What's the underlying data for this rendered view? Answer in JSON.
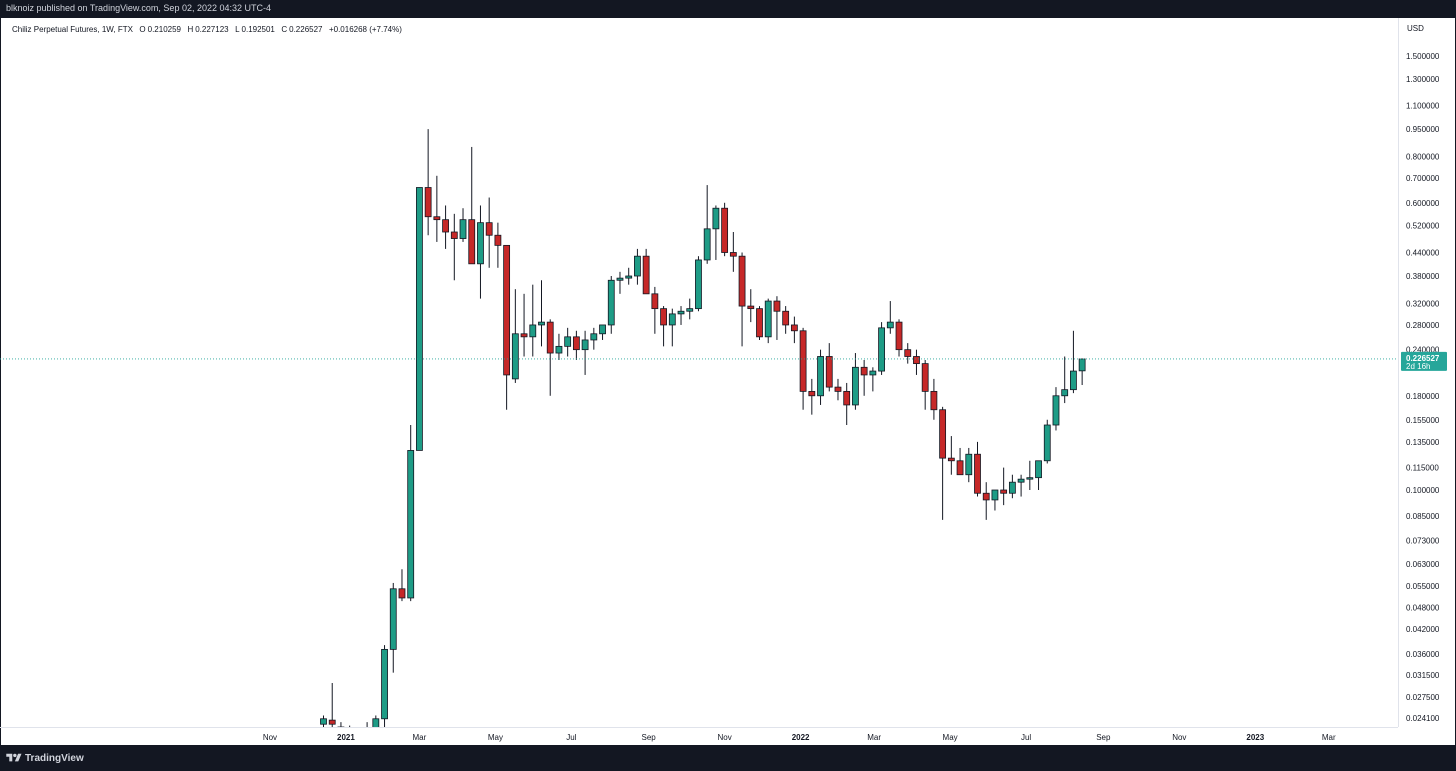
{
  "header": {
    "published": "blknoiz published on TradingView.com, Sep 02, 2022 04:32 UTC-4"
  },
  "legend": {
    "symbol": "Chiliz Perpetual Futures, 1W, FTX",
    "open_label": "O",
    "open": "0.210259",
    "high_label": "H",
    "high": "0.227123",
    "low_label": "L",
    "low": "0.192501",
    "close_label": "C",
    "close": "0.226527",
    "change": "+0.016268 (+7.74%)"
  },
  "price_axis": {
    "currency": "USD",
    "last_price": "0.226527",
    "countdown": "2d 16h"
  },
  "footer": {
    "brand": "TradingView"
  },
  "colors": {
    "up": "#26a69a",
    "down": "#ef5350",
    "up_fill": "#1e9c86",
    "down_fill": "#c62828",
    "last_line": "#26a69a",
    "wick": "#131722"
  },
  "chart_data": {
    "type": "candlestick",
    "y_scale": "log",
    "ylim": [
      0.0228,
      1.9
    ],
    "y_ticks": [
      "1.500000",
      "1.300000",
      "1.100000",
      "0.950000",
      "0.800000",
      "0.700000",
      "0.600000",
      "0.520000",
      "0.440000",
      "0.380000",
      "0.320000",
      "0.280000",
      "0.240000",
      "0.180000",
      "0.155000",
      "0.135000",
      "0.115000",
      "0.100000",
      "0.085000",
      "0.073000",
      "0.063000",
      "0.055000",
      "0.048000",
      "0.042000",
      "0.036000",
      "0.031500",
      "0.027500",
      "0.024100"
    ],
    "x_ticks": [
      "Nov",
      "2021",
      "Mar",
      "May",
      "Jul",
      "Sep",
      "Nov",
      "2022",
      "Mar",
      "May",
      "Jul",
      "Sep",
      "Nov",
      "2023",
      "Mar"
    ],
    "x_start": "2020-12-14",
    "x_unit": "week",
    "candles": [
      {
        "date": "2020-12-14",
        "o": 0.0232,
        "h": 0.0245,
        "l": 0.0218,
        "c": 0.024
      },
      {
        "date": "2020-12-21",
        "o": 0.0238,
        "h": 0.03,
        "l": 0.0222,
        "c": 0.0232
      },
      {
        "date": "2020-12-28",
        "o": 0.0228,
        "h": 0.0235,
        "l": 0.021,
        "c": 0.0222
      },
      {
        "date": "2021-01-04",
        "o": 0.0222,
        "h": 0.023,
        "l": 0.0208,
        "c": 0.0218
      },
      {
        "date": "2021-01-11",
        "o": 0.0218,
        "h": 0.0228,
        "l": 0.0205,
        "c": 0.0222
      },
      {
        "date": "2021-01-18",
        "o": 0.0222,
        "h": 0.0235,
        "l": 0.021,
        "c": 0.022
      },
      {
        "date": "2021-01-25",
        "o": 0.022,
        "h": 0.0245,
        "l": 0.0215,
        "c": 0.024
      },
      {
        "date": "2021-02-01",
        "o": 0.024,
        "h": 0.038,
        "l": 0.0225,
        "c": 0.037
      },
      {
        "date": "2021-02-08",
        "o": 0.037,
        "h": 0.056,
        "l": 0.032,
        "c": 0.054
      },
      {
        "date": "2021-02-15",
        "o": 0.054,
        "h": 0.061,
        "l": 0.05,
        "c": 0.051
      },
      {
        "date": "2021-02-22",
        "o": 0.051,
        "h": 0.15,
        "l": 0.05,
        "c": 0.128
      },
      {
        "date": "2021-03-01",
        "o": 0.128,
        "h": 0.66,
        "l": 0.128,
        "c": 0.66
      },
      {
        "date": "2021-03-08",
        "o": 0.66,
        "h": 0.95,
        "l": 0.49,
        "c": 0.55
      },
      {
        "date": "2021-03-15",
        "o": 0.55,
        "h": 0.71,
        "l": 0.47,
        "c": 0.54
      },
      {
        "date": "2021-03-22",
        "o": 0.54,
        "h": 0.59,
        "l": 0.45,
        "c": 0.5
      },
      {
        "date": "2021-03-29",
        "o": 0.5,
        "h": 0.56,
        "l": 0.37,
        "c": 0.48
      },
      {
        "date": "2021-04-05",
        "o": 0.48,
        "h": 0.58,
        "l": 0.47,
        "c": 0.54
      },
      {
        "date": "2021-04-12",
        "o": 0.54,
        "h": 0.85,
        "l": 0.41,
        "c": 0.41
      },
      {
        "date": "2021-04-19",
        "o": 0.41,
        "h": 0.59,
        "l": 0.33,
        "c": 0.53
      },
      {
        "date": "2021-04-26",
        "o": 0.53,
        "h": 0.62,
        "l": 0.4,
        "c": 0.49
      },
      {
        "date": "2021-05-03",
        "o": 0.49,
        "h": 0.53,
        "l": 0.4,
        "c": 0.46
      },
      {
        "date": "2021-05-10",
        "o": 0.46,
        "h": 0.46,
        "l": 0.165,
        "c": 0.205
      },
      {
        "date": "2021-05-17",
        "o": 0.2,
        "h": 0.35,
        "l": 0.195,
        "c": 0.265
      },
      {
        "date": "2021-05-24",
        "o": 0.265,
        "h": 0.34,
        "l": 0.23,
        "c": 0.26
      },
      {
        "date": "2021-05-31",
        "o": 0.26,
        "h": 0.36,
        "l": 0.23,
        "c": 0.28
      },
      {
        "date": "2021-06-07",
        "o": 0.28,
        "h": 0.37,
        "l": 0.245,
        "c": 0.285
      },
      {
        "date": "2021-06-14",
        "o": 0.285,
        "h": 0.29,
        "l": 0.18,
        "c": 0.235
      },
      {
        "date": "2021-06-21",
        "o": 0.235,
        "h": 0.265,
        "l": 0.225,
        "c": 0.245
      },
      {
        "date": "2021-06-28",
        "o": 0.245,
        "h": 0.275,
        "l": 0.23,
        "c": 0.26
      },
      {
        "date": "2021-07-05",
        "o": 0.26,
        "h": 0.27,
        "l": 0.225,
        "c": 0.24
      },
      {
        "date": "2021-07-12",
        "o": 0.24,
        "h": 0.27,
        "l": 0.205,
        "c": 0.255
      },
      {
        "date": "2021-07-19",
        "o": 0.255,
        "h": 0.275,
        "l": 0.24,
        "c": 0.265
      },
      {
        "date": "2021-07-26",
        "o": 0.265,
        "h": 0.28,
        "l": 0.255,
        "c": 0.28
      },
      {
        "date": "2021-08-02",
        "o": 0.28,
        "h": 0.38,
        "l": 0.265,
        "c": 0.37
      },
      {
        "date": "2021-08-09",
        "o": 0.37,
        "h": 0.39,
        "l": 0.34,
        "c": 0.375
      },
      {
        "date": "2021-08-16",
        "o": 0.375,
        "h": 0.4,
        "l": 0.36,
        "c": 0.38
      },
      {
        "date": "2021-08-23",
        "o": 0.38,
        "h": 0.45,
        "l": 0.36,
        "c": 0.43
      },
      {
        "date": "2021-08-30",
        "o": 0.43,
        "h": 0.45,
        "l": 0.34,
        "c": 0.34
      },
      {
        "date": "2021-09-06",
        "o": 0.34,
        "h": 0.355,
        "l": 0.265,
        "c": 0.31
      },
      {
        "date": "2021-09-13",
        "o": 0.31,
        "h": 0.315,
        "l": 0.245,
        "c": 0.28
      },
      {
        "date": "2021-09-20",
        "o": 0.28,
        "h": 0.31,
        "l": 0.245,
        "c": 0.3
      },
      {
        "date": "2021-09-27",
        "o": 0.3,
        "h": 0.315,
        "l": 0.28,
        "c": 0.305
      },
      {
        "date": "2021-10-04",
        "o": 0.305,
        "h": 0.33,
        "l": 0.29,
        "c": 0.31
      },
      {
        "date": "2021-10-11",
        "o": 0.31,
        "h": 0.43,
        "l": 0.305,
        "c": 0.42
      },
      {
        "date": "2021-10-18",
        "o": 0.42,
        "h": 0.67,
        "l": 0.41,
        "c": 0.51
      },
      {
        "date": "2021-10-25",
        "o": 0.51,
        "h": 0.59,
        "l": 0.42,
        "c": 0.58
      },
      {
        "date": "2021-11-01",
        "o": 0.58,
        "h": 0.6,
        "l": 0.43,
        "c": 0.44
      },
      {
        "date": "2021-11-08",
        "o": 0.44,
        "h": 0.5,
        "l": 0.39,
        "c": 0.43
      },
      {
        "date": "2021-11-15",
        "o": 0.43,
        "h": 0.44,
        "l": 0.245,
        "c": 0.315
      },
      {
        "date": "2021-11-22",
        "o": 0.315,
        "h": 0.35,
        "l": 0.285,
        "c": 0.31
      },
      {
        "date": "2021-11-29",
        "o": 0.31,
        "h": 0.315,
        "l": 0.255,
        "c": 0.26
      },
      {
        "date": "2021-12-06",
        "o": 0.26,
        "h": 0.33,
        "l": 0.25,
        "c": 0.325
      },
      {
        "date": "2021-12-13",
        "o": 0.325,
        "h": 0.335,
        "l": 0.255,
        "c": 0.305
      },
      {
        "date": "2021-12-20",
        "o": 0.305,
        "h": 0.315,
        "l": 0.265,
        "c": 0.28
      },
      {
        "date": "2021-12-27",
        "o": 0.28,
        "h": 0.295,
        "l": 0.25,
        "c": 0.27
      },
      {
        "date": "2022-01-03",
        "o": 0.27,
        "h": 0.275,
        "l": 0.165,
        "c": 0.185
      },
      {
        "date": "2022-01-10",
        "o": 0.185,
        "h": 0.2,
        "l": 0.16,
        "c": 0.18
      },
      {
        "date": "2022-01-17",
        "o": 0.18,
        "h": 0.24,
        "l": 0.17,
        "c": 0.23
      },
      {
        "date": "2022-01-24",
        "o": 0.23,
        "h": 0.25,
        "l": 0.185,
        "c": 0.19
      },
      {
        "date": "2022-01-31",
        "o": 0.19,
        "h": 0.2,
        "l": 0.175,
        "c": 0.185
      },
      {
        "date": "2022-02-07",
        "o": 0.185,
        "h": 0.195,
        "l": 0.15,
        "c": 0.17
      },
      {
        "date": "2022-02-14",
        "o": 0.17,
        "h": 0.235,
        "l": 0.165,
        "c": 0.215
      },
      {
        "date": "2022-02-21",
        "o": 0.215,
        "h": 0.225,
        "l": 0.18,
        "c": 0.205
      },
      {
        "date": "2022-02-28",
        "o": 0.205,
        "h": 0.215,
        "l": 0.185,
        "c": 0.21
      },
      {
        "date": "2022-03-07",
        "o": 0.21,
        "h": 0.285,
        "l": 0.205,
        "c": 0.275
      },
      {
        "date": "2022-03-14",
        "o": 0.275,
        "h": 0.325,
        "l": 0.265,
        "c": 0.285
      },
      {
        "date": "2022-03-21",
        "o": 0.285,
        "h": 0.29,
        "l": 0.23,
        "c": 0.24
      },
      {
        "date": "2022-03-28",
        "o": 0.24,
        "h": 0.25,
        "l": 0.22,
        "c": 0.23
      },
      {
        "date": "2022-04-04",
        "o": 0.23,
        "h": 0.24,
        "l": 0.205,
        "c": 0.22
      },
      {
        "date": "2022-04-11",
        "o": 0.22,
        "h": 0.225,
        "l": 0.165,
        "c": 0.185
      },
      {
        "date": "2022-04-18",
        "o": 0.185,
        "h": 0.2,
        "l": 0.155,
        "c": 0.165
      },
      {
        "date": "2022-04-25",
        "o": 0.165,
        "h": 0.168,
        "l": 0.083,
        "c": 0.122
      },
      {
        "date": "2022-05-02",
        "o": 0.122,
        "h": 0.14,
        "l": 0.11,
        "c": 0.12
      },
      {
        "date": "2022-05-09",
        "o": 0.12,
        "h": 0.13,
        "l": 0.11,
        "c": 0.11
      },
      {
        "date": "2022-05-16",
        "o": 0.11,
        "h": 0.13,
        "l": 0.105,
        "c": 0.125
      },
      {
        "date": "2022-05-23",
        "o": 0.125,
        "h": 0.135,
        "l": 0.096,
        "c": 0.098
      },
      {
        "date": "2022-05-30",
        "o": 0.098,
        "h": 0.105,
        "l": 0.083,
        "c": 0.094
      },
      {
        "date": "2022-06-06",
        "o": 0.094,
        "h": 0.1,
        "l": 0.088,
        "c": 0.1
      },
      {
        "date": "2022-06-13",
        "o": 0.1,
        "h": 0.115,
        "l": 0.091,
        "c": 0.098
      },
      {
        "date": "2022-06-20",
        "o": 0.098,
        "h": 0.11,
        "l": 0.095,
        "c": 0.105
      },
      {
        "date": "2022-06-27",
        "o": 0.105,
        "h": 0.11,
        "l": 0.096,
        "c": 0.107
      },
      {
        "date": "2022-07-04",
        "o": 0.107,
        "h": 0.12,
        "l": 0.1,
        "c": 0.108
      },
      {
        "date": "2022-07-11",
        "o": 0.108,
        "h": 0.12,
        "l": 0.1,
        "c": 0.12
      },
      {
        "date": "2022-07-18",
        "o": 0.12,
        "h": 0.155,
        "l": 0.118,
        "c": 0.15
      },
      {
        "date": "2022-07-25",
        "o": 0.15,
        "h": 0.19,
        "l": 0.145,
        "c": 0.18
      },
      {
        "date": "2022-08-01",
        "o": 0.18,
        "h": 0.23,
        "l": 0.172,
        "c": 0.187
      },
      {
        "date": "2022-08-08",
        "o": 0.187,
        "h": 0.27,
        "l": 0.183,
        "c": 0.21
      },
      {
        "date": "2022-08-15",
        "o": 0.2103,
        "h": 0.2271,
        "l": 0.1925,
        "c": 0.2265
      }
    ]
  }
}
